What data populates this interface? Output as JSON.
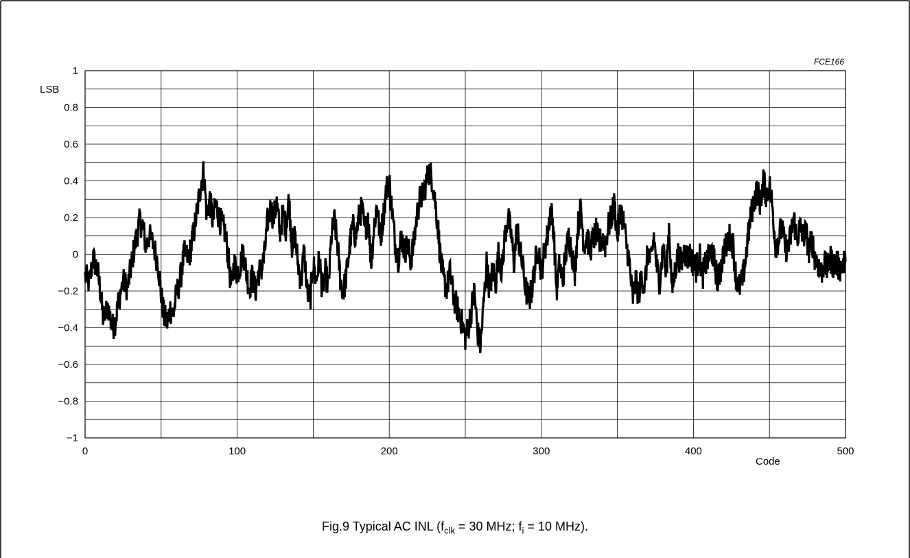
{
  "figure_code": "FCE166",
  "caption": {
    "prefix": "Fig.9  Typical AC INL (f",
    "sub1": "clk",
    "mid": " = 30 MHz; f",
    "sub2": "i",
    "suffix": " = 10 MHz)."
  },
  "chart_data": {
    "type": "line",
    "title": "",
    "xlabel": "Code",
    "ylabel": "LSB",
    "xlim": [
      0,
      500
    ],
    "ylim": [
      -1,
      1
    ],
    "x_ticks": [
      0,
      100,
      200,
      300,
      400,
      500
    ],
    "y_ticks": [
      -1,
      -0.8,
      -0.6,
      -0.4,
      -0.2,
      0,
      0.2,
      0.4,
      0.6,
      0.8,
      1
    ],
    "x_tick_labels": [
      "0",
      "100",
      "200",
      "300",
      "400",
      "500"
    ],
    "y_tick_labels": [
      "−1",
      "−0.8",
      "−0.6",
      "−0.4",
      "−0.2",
      "0",
      "0.2",
      "0.4",
      "0.6",
      "0.8",
      "1"
    ],
    "grid": true,
    "minor_y_grid": 0.1,
    "series": [
      {
        "color": "#000000",
        "anchors": [
          [
            0,
            -0.12
          ],
          [
            3,
            -0.16
          ],
          [
            5,
            -0.02
          ],
          [
            8,
            -0.08
          ],
          [
            10,
            -0.2
          ],
          [
            12,
            -0.36
          ],
          [
            15,
            -0.28
          ],
          [
            18,
            -0.4
          ],
          [
            20,
            -0.36
          ],
          [
            22,
            -0.25
          ],
          [
            25,
            -0.15
          ],
          [
            28,
            -0.18
          ],
          [
            30,
            -0.08
          ],
          [
            32,
            0.02
          ],
          [
            34,
            0.1
          ],
          [
            36,
            0.18
          ],
          [
            38,
            0.15
          ],
          [
            40,
            0.04
          ],
          [
            42,
            0.1
          ],
          [
            45,
            0.05
          ],
          [
            48,
            -0.05
          ],
          [
            50,
            -0.22
          ],
          [
            52,
            -0.34
          ],
          [
            54,
            -0.37
          ],
          [
            56,
            -0.3
          ],
          [
            58,
            -0.33
          ],
          [
            60,
            -0.22
          ],
          [
            63,
            -0.12
          ],
          [
            65,
            0.0
          ],
          [
            68,
            -0.02
          ],
          [
            70,
            0.05
          ],
          [
            72,
            0.15
          ],
          [
            74,
            0.25
          ],
          [
            76,
            0.38
          ],
          [
            78,
            0.45
          ],
          [
            80,
            0.22
          ],
          [
            82,
            0.3
          ],
          [
            84,
            0.18
          ],
          [
            86,
            0.28
          ],
          [
            88,
            0.2
          ],
          [
            90,
            0.16
          ],
          [
            92,
            0.12
          ],
          [
            94,
            0.0
          ],
          [
            96,
            -0.18
          ],
          [
            98,
            -0.05
          ],
          [
            100,
            -0.1
          ],
          [
            102,
            -0.06
          ],
          [
            104,
            0.02
          ],
          [
            106,
            -0.1
          ],
          [
            108,
            -0.18
          ],
          [
            110,
            -0.12
          ],
          [
            112,
            -0.2
          ],
          [
            114,
            -0.1
          ],
          [
            116,
            -0.08
          ],
          [
            118,
            0.0
          ],
          [
            120,
            0.18
          ],
          [
            122,
            0.25
          ],
          [
            124,
            0.2
          ],
          [
            126,
            0.28
          ],
          [
            128,
            0.12
          ],
          [
            130,
            0.22
          ],
          [
            132,
            0.15
          ],
          [
            134,
            0.3
          ],
          [
            136,
            0.05
          ],
          [
            138,
            0.1
          ],
          [
            140,
            -0.05
          ],
          [
            142,
            -0.15
          ],
          [
            144,
            0.02
          ],
          [
            146,
            -0.2
          ],
          [
            148,
            -0.25
          ],
          [
            150,
            -0.05
          ],
          [
            152,
            -0.15
          ],
          [
            154,
            -0.02
          ],
          [
            156,
            -0.2
          ],
          [
            158,
            -0.1
          ],
          [
            160,
            -0.18
          ],
          [
            162,
            0.1
          ],
          [
            164,
            0.18
          ],
          [
            166,
            0.05
          ],
          [
            168,
            -0.15
          ],
          [
            170,
            -0.2
          ],
          [
            172,
            -0.1
          ],
          [
            174,
            0.05
          ],
          [
            176,
            0.15
          ],
          [
            178,
            0.1
          ],
          [
            180,
            0.2
          ],
          [
            182,
            0.25
          ],
          [
            184,
            0.12
          ],
          [
            186,
            0.22
          ],
          [
            188,
            -0.05
          ],
          [
            190,
            0.15
          ],
          [
            192,
            0.28
          ],
          [
            194,
            0.08
          ],
          [
            196,
            0.2
          ],
          [
            198,
            0.35
          ],
          [
            200,
            0.4
          ],
          [
            202,
            0.22
          ],
          [
            204,
            0.05
          ],
          [
            206,
            -0.02
          ],
          [
            208,
            0.1
          ],
          [
            210,
            0.02
          ],
          [
            212,
            0.05
          ],
          [
            214,
            -0.03
          ],
          [
            216,
            0.05
          ],
          [
            218,
            0.2
          ],
          [
            220,
            0.3
          ],
          [
            222,
            0.32
          ],
          [
            224,
            0.38
          ],
          [
            226,
            0.45
          ],
          [
            228,
            0.42
          ],
          [
            230,
            0.3
          ],
          [
            232,
            0.15
          ],
          [
            234,
            -0.05
          ],
          [
            236,
            -0.15
          ],
          [
            238,
            -0.18
          ],
          [
            240,
            -0.1
          ],
          [
            242,
            -0.22
          ],
          [
            244,
            -0.28
          ],
          [
            246,
            -0.32
          ],
          [
            248,
            -0.38
          ],
          [
            250,
            -0.45
          ],
          [
            252,
            -0.4
          ],
          [
            254,
            -0.3
          ],
          [
            256,
            -0.2
          ],
          [
            258,
            -0.42
          ],
          [
            260,
            -0.5
          ],
          [
            262,
            -0.28
          ],
          [
            264,
            -0.05
          ],
          [
            266,
            -0.2
          ],
          [
            268,
            -0.08
          ],
          [
            270,
            -0.15
          ],
          [
            272,
            0.02
          ],
          [
            274,
            -0.1
          ],
          [
            276,
            0.1
          ],
          [
            278,
            0.2
          ],
          [
            280,
            0.12
          ],
          [
            282,
            -0.05
          ],
          [
            284,
            0.15
          ],
          [
            286,
            0.02
          ],
          [
            288,
            -0.08
          ],
          [
            290,
            -0.2
          ],
          [
            292,
            -0.25
          ],
          [
            294,
            -0.18
          ],
          [
            296,
            -0.05
          ],
          [
            298,
            0.05
          ],
          [
            300,
            -0.1
          ],
          [
            302,
            0.02
          ],
          [
            304,
            0.1
          ],
          [
            306,
            0.25
          ],
          [
            308,
            0.15
          ],
          [
            310,
            -0.2
          ],
          [
            312,
            -0.05
          ],
          [
            314,
            -0.15
          ],
          [
            316,
            0.0
          ],
          [
            318,
            0.1
          ],
          [
            320,
            0.02
          ],
          [
            322,
            -0.1
          ],
          [
            324,
            0.15
          ],
          [
            326,
            0.25
          ],
          [
            328,
            0.05
          ],
          [
            330,
            0.1
          ],
          [
            332,
            0.02
          ],
          [
            334,
            0.08
          ],
          [
            336,
            0.12
          ],
          [
            338,
            0.05
          ],
          [
            340,
            0.1
          ],
          [
            342,
            0.05
          ],
          [
            344,
            0.15
          ],
          [
            346,
            0.2
          ],
          [
            348,
            0.28
          ],
          [
            350,
            0.1
          ],
          [
            352,
            0.25
          ],
          [
            354,
            0.18
          ],
          [
            356,
            0.05
          ],
          [
            358,
            -0.05
          ],
          [
            360,
            -0.25
          ],
          [
            362,
            -0.15
          ],
          [
            364,
            -0.22
          ],
          [
            366,
            -0.12
          ],
          [
            368,
            -0.18
          ],
          [
            370,
            0.02
          ],
          [
            372,
            -0.05
          ],
          [
            374,
            0.1
          ],
          [
            376,
            -0.08
          ],
          [
            378,
            -0.15
          ],
          [
            380,
            0.05
          ],
          [
            382,
            -0.12
          ],
          [
            384,
            0.15
          ],
          [
            386,
            -0.2
          ],
          [
            388,
            -0.08
          ],
          [
            390,
            0.0
          ],
          [
            392,
            -0.05
          ],
          [
            394,
            0.02
          ],
          [
            396,
            -0.02
          ],
          [
            398,
            0.0
          ],
          [
            400,
            -0.05
          ],
          [
            402,
            -0.08
          ],
          [
            404,
            0.0
          ],
          [
            406,
            -0.12
          ],
          [
            408,
            -0.05
          ],
          [
            410,
            -0.02
          ],
          [
            412,
            0.02
          ],
          [
            414,
            -0.05
          ],
          [
            416,
            -0.15
          ],
          [
            418,
            -0.08
          ],
          [
            420,
            0.02
          ],
          [
            422,
            0.05
          ],
          [
            424,
            0.1
          ],
          [
            426,
            0.05
          ],
          [
            428,
            -0.12
          ],
          [
            430,
            -0.18
          ],
          [
            432,
            -0.15
          ],
          [
            434,
            -0.05
          ],
          [
            436,
            0.1
          ],
          [
            438,
            0.22
          ],
          [
            440,
            0.3
          ],
          [
            442,
            0.35
          ],
          [
            444,
            0.28
          ],
          [
            446,
            0.4
          ],
          [
            448,
            0.32
          ],
          [
            450,
            0.38
          ],
          [
            452,
            0.25
          ],
          [
            454,
            0.05
          ],
          [
            456,
            0.08
          ],
          [
            458,
            0.15
          ],
          [
            460,
            0.05
          ],
          [
            462,
            0.02
          ],
          [
            464,
            0.1
          ],
          [
            466,
            0.2
          ],
          [
            468,
            0.08
          ],
          [
            470,
            0.15
          ],
          [
            472,
            0.1
          ],
          [
            474,
            0.12
          ],
          [
            476,
            0.02
          ],
          [
            478,
            0.08
          ],
          [
            480,
            -0.02
          ],
          [
            482,
            -0.05
          ],
          [
            484,
            -0.1
          ],
          [
            486,
            -0.05
          ],
          [
            488,
            -0.08
          ],
          [
            490,
            -0.02
          ],
          [
            492,
            -0.06
          ],
          [
            494,
            -0.04
          ],
          [
            496,
            -0.08
          ],
          [
            498,
            -0.05
          ],
          [
            500,
            -0.04
          ]
        ],
        "jitter_amplitude": 0.08
      }
    ]
  }
}
